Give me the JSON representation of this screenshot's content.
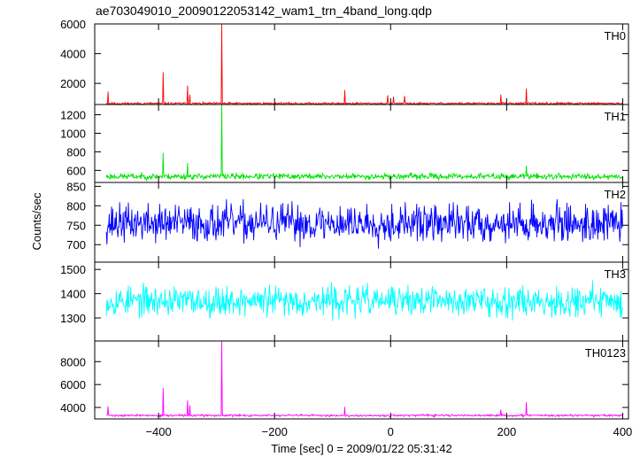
{
  "title": "ae703049010_20090122053142_wam1_trn_4band_long.qdp",
  "xlabel": "Time [sec] 0 = 2009/01/22 05:31:42",
  "ylabel": "Counts/sec",
  "chart_data": {
    "type": "line",
    "title": "ae703049010_20090122053142_wam1_trn_4band_long.qdp",
    "xlabel": "Time [sec] 0 = 2009/01/22 05:31:42",
    "ylabel": "Counts/sec",
    "xlim": [
      -510,
      410
    ],
    "xticks": [
      -400,
      -200,
      0,
      200,
      400
    ],
    "grid": false,
    "panels": [
      {
        "name": "TH0",
        "color": "#ff0000",
        "ylim": [
          580,
          6000
        ],
        "yticks": [
          2000,
          4000,
          6000
        ],
        "baseline": 650,
        "noise": 45,
        "seed": 11,
        "peaks": [
          [
            -487,
            1450
          ],
          [
            -392,
            2750
          ],
          [
            -350,
            1850
          ],
          [
            -346,
            1250
          ],
          [
            -291,
            6000
          ],
          [
            -79,
            1550
          ],
          [
            -5,
            1200
          ],
          [
            5,
            1100
          ],
          [
            24,
            1150
          ],
          [
            190,
            1250
          ],
          [
            234,
            1650
          ]
        ]
      },
      {
        "name": "TH1",
        "color": "#00e000",
        "ylim": [
          470,
          1310
        ],
        "yticks": [
          600,
          800,
          1000,
          1200
        ],
        "baseline": 535,
        "noise": 20,
        "seed": 23,
        "peaks": [
          [
            -392,
            790
          ],
          [
            -350,
            680
          ],
          [
            -291,
            1310
          ],
          [
            234,
            650
          ]
        ]
      },
      {
        "name": "TH2",
        "color": "#0000ff",
        "ylim": [
          655,
          860
        ],
        "yticks": [
          700,
          750,
          800,
          850
        ],
        "baseline": 755,
        "noise": 30,
        "seed": 37,
        "peaks": []
      },
      {
        "name": "TH3",
        "color": "#00ffff",
        "ylim": [
          1205,
          1530
        ],
        "yticks": [
          1300,
          1400,
          1500
        ],
        "baseline": 1370,
        "noise": 38,
        "seed": 53,
        "peaks": []
      },
      {
        "name": "TH0123",
        "color": "#ff00ff",
        "ylim": [
          3000,
          9800
        ],
        "yticks": [
          4000,
          6000,
          8000
        ],
        "baseline": 3300,
        "noise": 55,
        "seed": 71,
        "peaks": [
          [
            -487,
            4100
          ],
          [
            -392,
            5700
          ],
          [
            -350,
            4600
          ],
          [
            -346,
            4200
          ],
          [
            -291,
            9800
          ],
          [
            -79,
            4050
          ],
          [
            190,
            3800
          ],
          [
            234,
            4450
          ]
        ]
      }
    ]
  }
}
